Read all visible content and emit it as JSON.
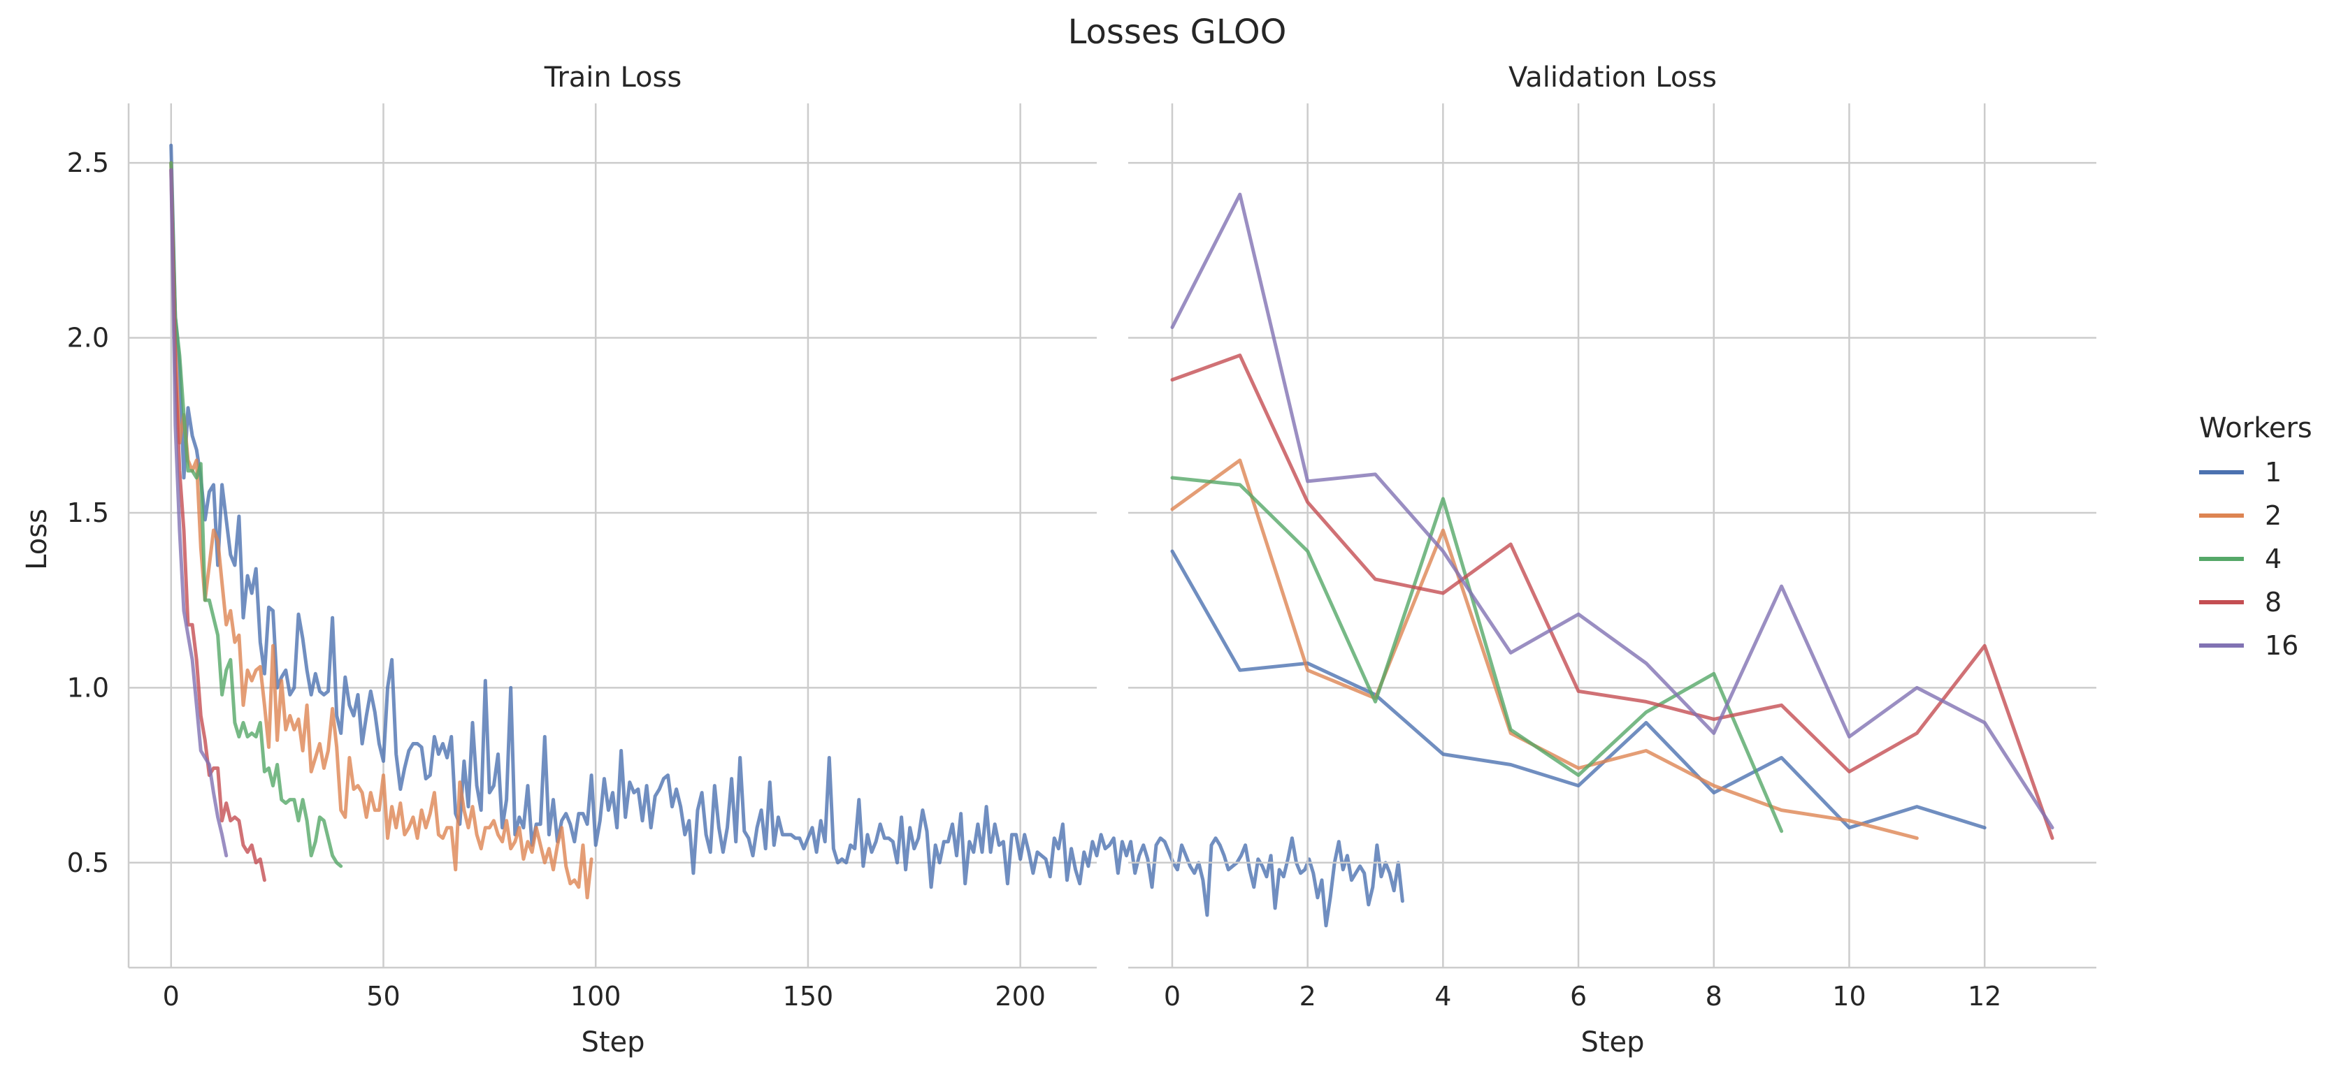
{
  "figure": {
    "suptitle": "Losses GLOO"
  },
  "legend": {
    "title": "Workers",
    "placement": "right-center"
  },
  "colors": {
    "1": "#4c72b0",
    "2": "#dd8452",
    "4": "#55a868",
    "8": "#c44e52",
    "16": "#8172b3"
  },
  "chart_data": [
    {
      "type": "line",
      "title": "Train Loss",
      "xlabel": "Step",
      "ylabel": "Loss",
      "xlim": [
        -10,
        218
      ],
      "ylim": [
        0.2,
        2.67
      ],
      "xticks": [
        0,
        50,
        100,
        150,
        200
      ],
      "yticks": [
        0.5,
        1.0,
        1.5,
        2.0,
        2.5
      ],
      "ytick_labels": [
        "0.5",
        "1.0",
        "1.5",
        "2.0",
        "2.5"
      ],
      "grid": true,
      "series": [
        {
          "name": "1",
          "color": "#4c72b0",
          "x_start": 0,
          "x_step": 1,
          "values": [
            2.55,
            2.06,
            1.92,
            1.6,
            1.8,
            1.72,
            1.68,
            1.6,
            1.48,
            1.56,
            1.58,
            1.35,
            1.58,
            1.48,
            1.38,
            1.35,
            1.49,
            1.2,
            1.32,
            1.27,
            1.34,
            1.13,
            1.04,
            1.23,
            1.22,
            1.0,
            1.03,
            1.05,
            0.98,
            1.0,
            1.21,
            1.14,
            1.05,
            0.98,
            1.04,
            0.99,
            0.98,
            0.99,
            1.2,
            0.92,
            0.87,
            1.03,
            0.95,
            0.92,
            0.98,
            0.84,
            0.92,
            0.99,
            0.93,
            0.84,
            0.79,
            1.0,
            1.08,
            0.81,
            0.71,
            0.77,
            0.82,
            0.84,
            0.84,
            0.83,
            0.74,
            0.75,
            0.86,
            0.81,
            0.84,
            0.8,
            0.86,
            0.64,
            0.61,
            0.79,
            0.66,
            0.9,
            0.72,
            0.65,
            1.02,
            0.7,
            0.72,
            0.81,
            0.6,
            0.68,
            1.0,
            0.58,
            0.63,
            0.6,
            0.72,
            0.55,
            0.61,
            0.61,
            0.86,
            0.58,
            0.68,
            0.56,
            0.62,
            0.64,
            0.61,
            0.56,
            0.64,
            0.64,
            0.61,
            0.75,
            0.55,
            0.62,
            0.74,
            0.65,
            0.7,
            0.6,
            0.82,
            0.63,
            0.73,
            0.7,
            0.71,
            0.62,
            0.72,
            0.6,
            0.69,
            0.71,
            0.74,
            0.75,
            0.66,
            0.71,
            0.66,
            0.58,
            0.62,
            0.47,
            0.65,
            0.7,
            0.58,
            0.53,
            0.72,
            0.6,
            0.53,
            0.6,
            0.74,
            0.56,
            0.8,
            0.59,
            0.57,
            0.52,
            0.6,
            0.65,
            0.54,
            0.73,
            0.55,
            0.63,
            0.58,
            0.58,
            0.58,
            0.57,
            0.57,
            0.54,
            0.57,
            0.6,
            0.53,
            0.62,
            0.56,
            0.8,
            0.54,
            0.5,
            0.51,
            0.5,
            0.55,
            0.54,
            0.68,
            0.49,
            0.58,
            0.53,
            0.56,
            0.61,
            0.57,
            0.57,
            0.56,
            0.5,
            0.63,
            0.48,
            0.6,
            0.54,
            0.57,
            0.65,
            0.59,
            0.43,
            0.55,
            0.5,
            0.56,
            0.56,
            0.61,
            0.52,
            0.64,
            0.44,
            0.56,
            0.53,
            0.61,
            0.53,
            0.66,
            0.53,
            0.61,
            0.55,
            0.56,
            0.44,
            0.58,
            0.58,
            0.51,
            0.58,
            0.53,
            0.47,
            0.53,
            0.52,
            0.51,
            0.46,
            0.57,
            0.54,
            0.61,
            0.45,
            0.54,
            0.48,
            0.44,
            0.53,
            0.49,
            0.56,
            0.52,
            0.58,
            0.54,
            0.55,
            0.57,
            0.47,
            0.56,
            0.52,
            0.56,
            0.47,
            0.52,
            0.55,
            0.51,
            0.43,
            0.55,
            0.57,
            0.56,
            0.53,
            0.5,
            0.48,
            0.55,
            0.52,
            0.49,
            0.47,
            0.5,
            0.45,
            0.35,
            0.55,
            0.57,
            0.55,
            0.52,
            0.48,
            0.49,
            0.5,
            0.52,
            0.55,
            0.48,
            0.43,
            0.51,
            0.49,
            0.46,
            0.52,
            0.37,
            0.48,
            0.46,
            0.51,
            0.57,
            0.5,
            0.47,
            0.48,
            0.51,
            0.47,
            0.4,
            0.45,
            0.32,
            0.4,
            0.5,
            0.56,
            0.48,
            0.52,
            0.45,
            0.47,
            0.49,
            0.47,
            0.38,
            0.43,
            0.55,
            0.46,
            0.5,
            0.47,
            0.42,
            0.5,
            0.39
          ]
        },
        {
          "name": "2",
          "color": "#dd8452",
          "x_start": 0,
          "x_step": 1,
          "values": [
            2.5,
            1.98,
            1.7,
            1.78,
            1.65,
            1.62,
            1.65,
            1.4,
            1.25,
            1.35,
            1.45,
            1.42,
            1.3,
            1.18,
            1.22,
            1.13,
            1.15,
            0.95,
            1.05,
            1.02,
            1.05,
            1.06,
            0.95,
            0.83,
            1.12,
            0.85,
            1.02,
            0.88,
            0.92,
            0.88,
            0.91,
            0.82,
            0.95,
            0.76,
            0.8,
            0.84,
            0.77,
            0.82,
            0.94,
            0.83,
            0.65,
            0.63,
            0.8,
            0.71,
            0.72,
            0.7,
            0.63,
            0.7,
            0.65,
            0.65,
            0.75,
            0.57,
            0.66,
            0.6,
            0.67,
            0.58,
            0.6,
            0.63,
            0.57,
            0.65,
            0.6,
            0.64,
            0.7,
            0.58,
            0.57,
            0.6,
            0.6,
            0.48,
            0.73,
            0.65,
            0.6,
            0.66,
            0.58,
            0.54,
            0.6,
            0.6,
            0.62,
            0.58,
            0.56,
            0.62,
            0.54,
            0.56,
            0.6,
            0.51,
            0.56,
            0.53,
            0.6,
            0.55,
            0.5,
            0.54,
            0.48,
            0.55,
            0.6,
            0.49,
            0.44,
            0.45,
            0.43,
            0.55,
            0.4,
            0.51
          ]
        },
        {
          "name": "4",
          "color": "#55a868",
          "x_start": 0,
          "x_step": 1,
          "values": [
            2.5,
            2.06,
            1.95,
            1.78,
            1.62,
            1.62,
            1.6,
            1.64,
            1.25,
            1.25,
            1.2,
            1.15,
            0.98,
            1.05,
            1.08,
            0.9,
            0.86,
            0.9,
            0.86,
            0.87,
            0.86,
            0.9,
            0.76,
            0.77,
            0.72,
            0.78,
            0.68,
            0.67,
            0.68,
            0.68,
            0.62,
            0.68,
            0.62,
            0.52,
            0.56,
            0.63,
            0.62,
            0.57,
            0.52,
            0.5,
            0.49
          ]
        },
        {
          "name": "8",
          "color": "#c44e52",
          "x_start": 0,
          "x_step": 1,
          "values": [
            2.48,
            1.92,
            1.62,
            1.45,
            1.18,
            1.18,
            1.08,
            0.92,
            0.85,
            0.75,
            0.77,
            0.77,
            0.62,
            0.67,
            0.62,
            0.63,
            0.62,
            0.55,
            0.53,
            0.55,
            0.5,
            0.51,
            0.45
          ]
        },
        {
          "name": "16",
          "color": "#8172b3",
          "x_start": 0,
          "x_step": 1,
          "values": [
            2.48,
            1.75,
            1.45,
            1.22,
            1.15,
            1.08,
            0.95,
            0.82,
            0.8,
            0.78,
            0.7,
            0.63,
            0.58,
            0.52
          ]
        }
      ]
    },
    {
      "type": "line",
      "title": "Validation Loss",
      "xlabel": "Step",
      "ylabel": "",
      "xlim": [
        -0.65,
        13.65
      ],
      "ylim": [
        0.2,
        2.67
      ],
      "xticks": [
        0,
        2,
        4,
        6,
        8,
        10,
        12
      ],
      "grid": true,
      "series": [
        {
          "name": "1",
          "color": "#4c72b0",
          "x_start": 0,
          "x_step": 1,
          "values": [
            1.39,
            1.05,
            1.07,
            0.98,
            0.81,
            0.78,
            0.72,
            0.9,
            0.7,
            0.8,
            0.6,
            0.66,
            0.6
          ]
        },
        {
          "name": "2",
          "color": "#dd8452",
          "x_start": 0,
          "x_step": 1,
          "values": [
            1.51,
            1.65,
            1.05,
            0.97,
            1.45,
            0.87,
            0.77,
            0.82,
            0.72,
            0.65,
            0.62,
            0.57
          ]
        },
        {
          "name": "4",
          "color": "#55a868",
          "x_start": 0,
          "x_step": 1,
          "values": [
            1.6,
            1.58,
            1.39,
            0.96,
            1.54,
            0.88,
            0.75,
            0.93,
            1.04,
            0.59
          ]
        },
        {
          "name": "8",
          "color": "#c44e52",
          "x_start": 0,
          "x_step": 1,
          "values": [
            1.88,
            1.95,
            1.53,
            1.31,
            1.27,
            1.41,
            0.99,
            0.96,
            0.91,
            0.95,
            0.76,
            0.87,
            1.12,
            0.57
          ]
        },
        {
          "name": "16",
          "color": "#8172b3",
          "x_start": 0,
          "x_step": 1,
          "values": [
            2.03,
            2.41,
            1.59,
            1.61,
            1.39,
            1.1,
            1.21,
            1.07,
            0.87,
            1.29,
            0.86,
            1.0,
            0.9,
            0.6
          ]
        }
      ]
    }
  ]
}
